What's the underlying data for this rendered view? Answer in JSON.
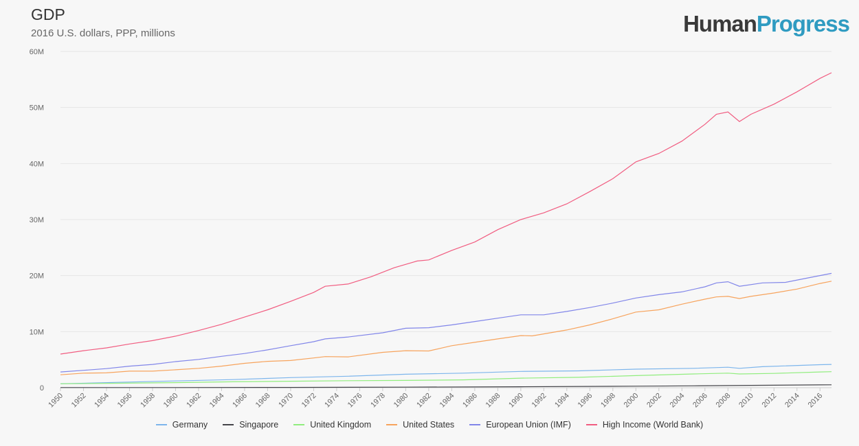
{
  "title": "GDP",
  "subtitle": "2016 U.S. dollars, PPP, millions",
  "logo": {
    "part1": "Human",
    "part2": "Progress"
  },
  "chart_data": {
    "type": "line",
    "title": "GDP",
    "subtitle": "2016 U.S. dollars, PPP, millions",
    "xlabel": "",
    "ylabel": "",
    "xlim": [
      1950,
      2017
    ],
    "ylim": [
      0,
      60
    ],
    "y_ticks": [
      0,
      10,
      20,
      30,
      40,
      50,
      60
    ],
    "y_tick_labels": [
      "0",
      "10M",
      "20M",
      "30M",
      "40M",
      "50M",
      "60M"
    ],
    "x_ticks": [
      1950,
      1952,
      1954,
      1956,
      1958,
      1960,
      1962,
      1964,
      1966,
      1968,
      1970,
      1972,
      1974,
      1976,
      1978,
      1980,
      1982,
      1984,
      1986,
      1988,
      1990,
      1992,
      1994,
      1996,
      1998,
      2000,
      2002,
      2004,
      2006,
      2008,
      2010,
      2012,
      2014,
      2016
    ],
    "grid": true,
    "legend_position": "bottom",
    "series": [
      {
        "name": "Germany",
        "color": "#7cb5ec",
        "points": [
          [
            1950,
            0.7
          ],
          [
            1955,
            0.95
          ],
          [
            1960,
            1.2
          ],
          [
            1965,
            1.45
          ],
          [
            1970,
            1.8
          ],
          [
            1975,
            2.05
          ],
          [
            1980,
            2.4
          ],
          [
            1985,
            2.6
          ],
          [
            1990,
            2.9
          ],
          [
            1995,
            3.0
          ],
          [
            2000,
            3.3
          ],
          [
            2005,
            3.45
          ],
          [
            2008,
            3.65
          ],
          [
            2009,
            3.45
          ],
          [
            2011,
            3.75
          ],
          [
            2016,
            4.1
          ],
          [
            2017,
            4.15
          ]
        ]
      },
      {
        "name": "Singapore",
        "color": "#434348",
        "points": [
          [
            1950,
            0.02
          ],
          [
            1960,
            0.03
          ],
          [
            1970,
            0.05
          ],
          [
            1980,
            0.1
          ],
          [
            1990,
            0.17
          ],
          [
            2000,
            0.27
          ],
          [
            2005,
            0.33
          ],
          [
            2010,
            0.42
          ],
          [
            2016,
            0.5
          ],
          [
            2017,
            0.52
          ]
        ]
      },
      {
        "name": "United Kingdom",
        "color": "#90ed7d",
        "points": [
          [
            1950,
            0.7
          ],
          [
            1955,
            0.8
          ],
          [
            1960,
            0.9
          ],
          [
            1965,
            1.05
          ],
          [
            1970,
            1.15
          ],
          [
            1975,
            1.25
          ],
          [
            1980,
            1.3
          ],
          [
            1985,
            1.4
          ],
          [
            1990,
            1.7
          ],
          [
            1995,
            1.85
          ],
          [
            2000,
            2.15
          ],
          [
            2005,
            2.45
          ],
          [
            2008,
            2.6
          ],
          [
            2009,
            2.45
          ],
          [
            2012,
            2.55
          ],
          [
            2016,
            2.8
          ],
          [
            2017,
            2.85
          ]
        ]
      },
      {
        "name": "United States",
        "color": "#f7a35c",
        "points": [
          [
            1950,
            2.3
          ],
          [
            1952,
            2.6
          ],
          [
            1954,
            2.65
          ],
          [
            1956,
            2.95
          ],
          [
            1958,
            2.95
          ],
          [
            1960,
            3.2
          ],
          [
            1962,
            3.45
          ],
          [
            1964,
            3.85
          ],
          [
            1966,
            4.35
          ],
          [
            1968,
            4.7
          ],
          [
            1970,
            4.85
          ],
          [
            1972,
            5.3
          ],
          [
            1973,
            5.55
          ],
          [
            1975,
            5.5
          ],
          [
            1978,
            6.3
          ],
          [
            1980,
            6.6
          ],
          [
            1982,
            6.55
          ],
          [
            1984,
            7.5
          ],
          [
            1986,
            8.1
          ],
          [
            1988,
            8.7
          ],
          [
            1990,
            9.3
          ],
          [
            1991,
            9.25
          ],
          [
            1994,
            10.3
          ],
          [
            1996,
            11.2
          ],
          [
            1998,
            12.3
          ],
          [
            2000,
            13.5
          ],
          [
            2002,
            13.9
          ],
          [
            2004,
            14.9
          ],
          [
            2006,
            15.8
          ],
          [
            2007,
            16.2
          ],
          [
            2008,
            16.3
          ],
          [
            2009,
            15.9
          ],
          [
            2010,
            16.3
          ],
          [
            2012,
            16.9
          ],
          [
            2014,
            17.6
          ],
          [
            2016,
            18.6
          ],
          [
            2017,
            19.0
          ]
        ]
      },
      {
        "name": "European Union (IMF)",
        "color": "#8085e9",
        "points": [
          [
            1950,
            2.8
          ],
          [
            1952,
            3.1
          ],
          [
            1954,
            3.4
          ],
          [
            1956,
            3.85
          ],
          [
            1958,
            4.15
          ],
          [
            1960,
            4.65
          ],
          [
            1962,
            5.05
          ],
          [
            1964,
            5.6
          ],
          [
            1966,
            6.1
          ],
          [
            1968,
            6.75
          ],
          [
            1970,
            7.5
          ],
          [
            1972,
            8.2
          ],
          [
            1973,
            8.7
          ],
          [
            1975,
            9.05
          ],
          [
            1978,
            9.8
          ],
          [
            1980,
            10.6
          ],
          [
            1982,
            10.7
          ],
          [
            1984,
            11.2
          ],
          [
            1986,
            11.8
          ],
          [
            1988,
            12.4
          ],
          [
            1990,
            13.0
          ],
          [
            1992,
            13.0
          ],
          [
            1994,
            13.6
          ],
          [
            1996,
            14.3
          ],
          [
            1998,
            15.1
          ],
          [
            2000,
            16.0
          ],
          [
            2002,
            16.6
          ],
          [
            2004,
            17.1
          ],
          [
            2006,
            18.0
          ],
          [
            2007,
            18.7
          ],
          [
            2008,
            18.9
          ],
          [
            2009,
            18.1
          ],
          [
            2011,
            18.7
          ],
          [
            2013,
            18.8
          ],
          [
            2015,
            19.6
          ],
          [
            2017,
            20.4
          ]
        ]
      },
      {
        "name": "High Income (World Bank)",
        "color": "#f15c80",
        "points": [
          [
            1950,
            6.0
          ],
          [
            1952,
            6.6
          ],
          [
            1954,
            7.1
          ],
          [
            1956,
            7.8
          ],
          [
            1958,
            8.4
          ],
          [
            1960,
            9.2
          ],
          [
            1962,
            10.2
          ],
          [
            1964,
            11.3
          ],
          [
            1966,
            12.6
          ],
          [
            1968,
            13.9
          ],
          [
            1970,
            15.4
          ],
          [
            1972,
            17.0
          ],
          [
            1973,
            18.1
          ],
          [
            1975,
            18.5
          ],
          [
            1977,
            19.8
          ],
          [
            1979,
            21.4
          ],
          [
            1981,
            22.6
          ],
          [
            1982,
            22.8
          ],
          [
            1984,
            24.5
          ],
          [
            1986,
            26.0
          ],
          [
            1988,
            28.2
          ],
          [
            1990,
            30.0
          ],
          [
            1992,
            31.2
          ],
          [
            1994,
            32.8
          ],
          [
            1996,
            35.0
          ],
          [
            1998,
            37.3
          ],
          [
            2000,
            40.3
          ],
          [
            2002,
            41.8
          ],
          [
            2004,
            44.0
          ],
          [
            2006,
            47.0
          ],
          [
            2007,
            48.8
          ],
          [
            2008,
            49.2
          ],
          [
            2009,
            47.5
          ],
          [
            2010,
            48.8
          ],
          [
            2012,
            50.6
          ],
          [
            2014,
            52.8
          ],
          [
            2016,
            55.2
          ],
          [
            2017,
            56.2
          ]
        ]
      }
    ]
  }
}
